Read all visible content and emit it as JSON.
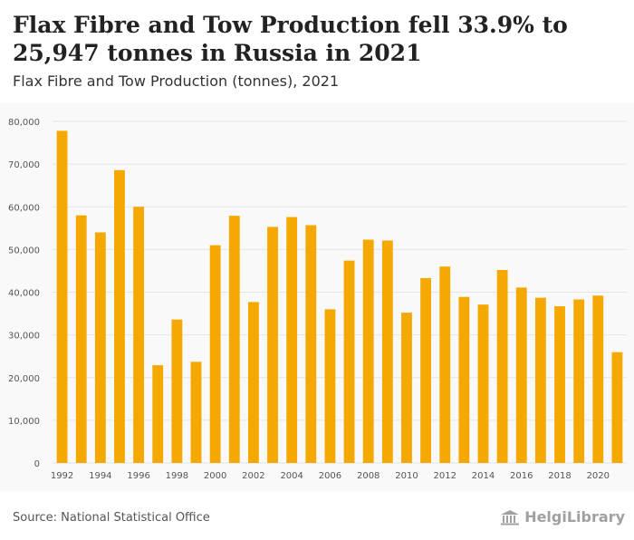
{
  "header": {
    "title": "Flax Fibre and Tow Production fell 33.9% to 25,947 tonnes in Russia in 2021",
    "subtitle": "Flax Fibre and Tow Production (tonnes), 2021"
  },
  "footer": {
    "source": "Source: National Statistical Office",
    "brand": "HelgiLibrary"
  },
  "colors": {
    "bar": "#f5a800",
    "background": "#f9f9f9",
    "grid": "#e4e4e4"
  },
  "icons": {
    "brand": "library-building-icon"
  },
  "chart_data": {
    "type": "bar",
    "title": "Flax Fibre and Tow Production (tonnes), 2021",
    "xlabel": "",
    "ylabel": "",
    "ylim": [
      0,
      80000
    ],
    "yticks": [
      0,
      10000,
      20000,
      30000,
      40000,
      50000,
      60000,
      70000,
      80000
    ],
    "ytick_labels": [
      "0",
      "10,000",
      "20,000",
      "30,000",
      "40,000",
      "50,000",
      "60,000",
      "70,000",
      "80,000"
    ],
    "xtick_labels": [
      "1992",
      "1994",
      "1996",
      "1998",
      "2000",
      "2002",
      "2004",
      "2006",
      "2008",
      "2010",
      "2012",
      "2014",
      "2016",
      "2018",
      "2020"
    ],
    "grid": true,
    "legend": "none",
    "categories": [
      "1992",
      "1993",
      "1994",
      "1995",
      "1996",
      "1997",
      "1998",
      "1999",
      "2000",
      "2001",
      "2002",
      "2003",
      "2004",
      "2005",
      "2006",
      "2007",
      "2008",
      "2009",
      "2010",
      "2011",
      "2012",
      "2013",
      "2014",
      "2015",
      "2016",
      "2017",
      "2018",
      "2019",
      "2020",
      "2021"
    ],
    "values": [
      77800,
      58000,
      54000,
      68600,
      60000,
      22900,
      33600,
      23700,
      51000,
      57900,
      37700,
      55300,
      57600,
      55700,
      36000,
      47400,
      52300,
      52100,
      35200,
      43300,
      46000,
      38900,
      37100,
      45200,
      41100,
      38700,
      36700,
      38300,
      39200,
      25947
    ]
  }
}
